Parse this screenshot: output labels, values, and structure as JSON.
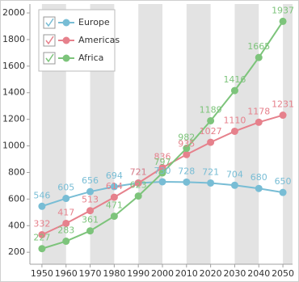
{
  "chart_data": {
    "type": "line",
    "x": [
      1950,
      1960,
      1970,
      1980,
      1990,
      2000,
      2010,
      2020,
      2030,
      2040,
      2050
    ],
    "series": [
      {
        "name": "Europe",
        "color": "#78bdd5",
        "values": [
          546,
          605,
          656,
          694,
          721,
          730,
          728,
          721,
          704,
          680,
          650
        ]
      },
      {
        "name": "Americas",
        "color": "#e6818c",
        "values": [
          332,
          417,
          513,
          614,
          721,
          836,
          935,
          1027,
          1110,
          1178,
          1231
        ]
      },
      {
        "name": "Africa",
        "color": "#7dc47b",
        "values": [
          227,
          283,
          361,
          471,
          623,
          797,
          982,
          1189,
          1416,
          1665,
          1937
        ]
      }
    ],
    "xlim": [
      1945,
      2054
    ],
    "xticks": [
      1950,
      1960,
      1970,
      1980,
      1990,
      2000,
      2010,
      2020,
      2030,
      2040,
      2050
    ],
    "ylim": [
      110,
      2067
    ],
    "yticks": [
      200,
      400,
      600,
      800,
      1000,
      1200,
      1400,
      1600,
      1800,
      2000
    ],
    "interlaced_grid": true,
    "legend": "top-left"
  }
}
